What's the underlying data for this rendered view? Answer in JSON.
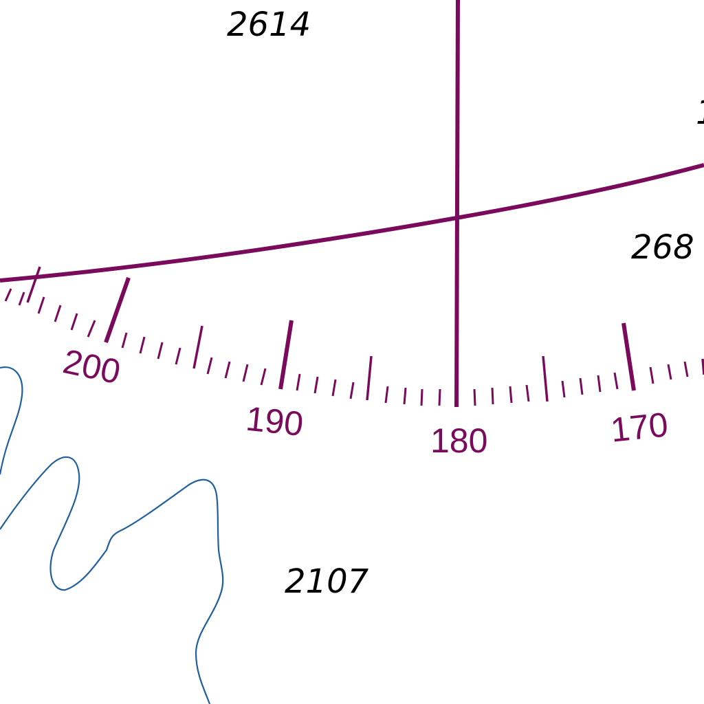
{
  "colors": {
    "magenta": "#7a0a5c",
    "contour": "#1f5fa0",
    "text": "#000000"
  },
  "soundings": [
    {
      "id": "sounding-2614",
      "text": "2614"
    },
    {
      "id": "sounding-268",
      "text": "268"
    },
    {
      "id": "sounding-2107",
      "text": "2107"
    },
    {
      "id": "sounding-partial-right",
      "text": "1"
    }
  ],
  "bearing_labels": {
    "l200": "200",
    "l190": "190",
    "l180": "180",
    "l170": "170"
  }
}
